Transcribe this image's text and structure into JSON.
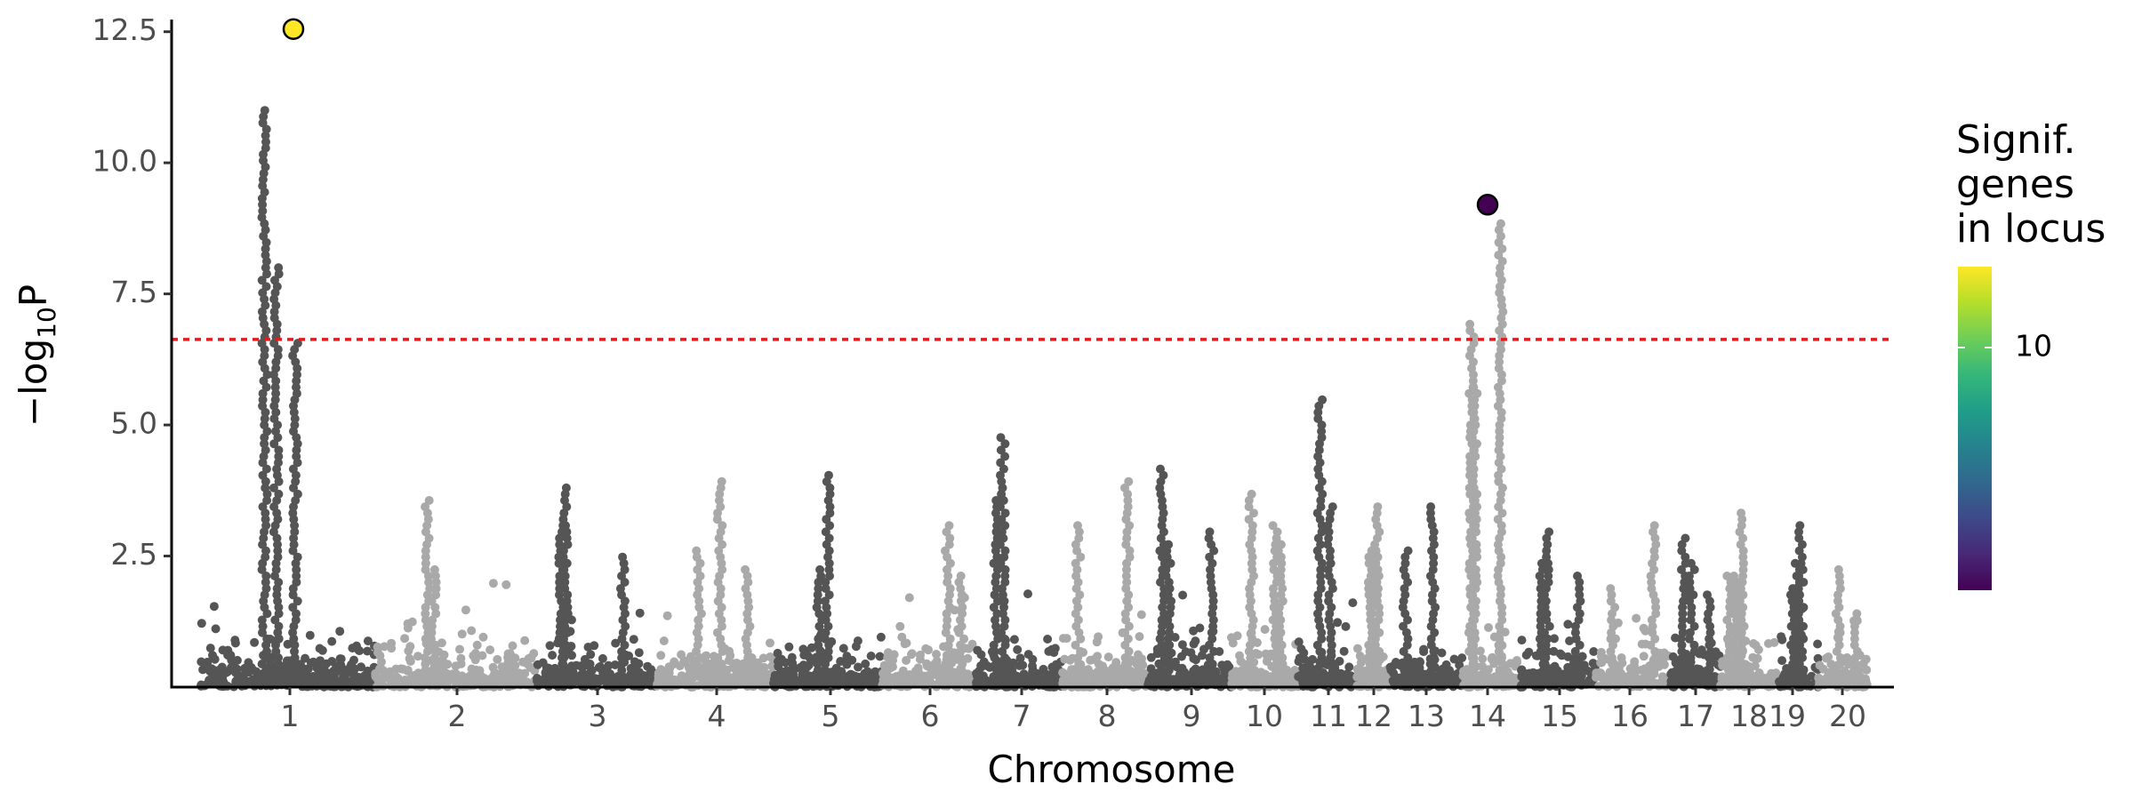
{
  "chart_data": {
    "type": "scatter",
    "subtype": "manhattan",
    "title": "",
    "xlabel": "Chromosome",
    "ylabel_prefix": "−log",
    "ylabel_sub": "10",
    "ylabel_suffix": "P",
    "ylim": [
      0,
      12.8
    ],
    "yticks": [
      2.5,
      5.0,
      7.5,
      10.0,
      12.5
    ],
    "ytick_labels": [
      "2.5",
      "5.0",
      "7.5",
      "10.0",
      "12.5"
    ],
    "significance_threshold": 6.63,
    "threshold_color": "#e41a1c",
    "point_colors": [
      "#555555",
      "#a9a9a9"
    ],
    "chromosomes": [
      {
        "label": "1",
        "sig_peak": 11.1
      },
      {
        "label": "2",
        "sig_peak": 3.6
      },
      {
        "label": "3",
        "sig_peak": 3.9
      },
      {
        "label": "4",
        "sig_peak": 4.0
      },
      {
        "label": "5",
        "sig_peak": 4.1
      },
      {
        "label": "6",
        "sig_peak": 3.1
      },
      {
        "label": "7",
        "sig_peak": 4.8
      },
      {
        "label": "8",
        "sig_peak": 4.0
      },
      {
        "label": "9",
        "sig_peak": 4.2
      },
      {
        "label": "10",
        "sig_peak": 3.8
      },
      {
        "label": "11",
        "sig_peak": 5.5
      },
      {
        "label": "12",
        "sig_peak": 3.5
      },
      {
        "label": "13",
        "sig_peak": 3.5
      },
      {
        "label": "14",
        "sig_peak": 8.9
      },
      {
        "label": "15",
        "sig_peak": 3.0
      },
      {
        "label": "16",
        "sig_peak": 3.2
      },
      {
        "label": "17",
        "sig_peak": 2.9
      },
      {
        "label": "18",
        "sig_peak": 3.4
      },
      {
        "label": "19",
        "sig_peak": 3.1
      },
      {
        "label": "20",
        "sig_peak": 2.3
      }
    ],
    "highlighted_loci": [
      {
        "chromosome": "1",
        "neg_log10_p": 12.55,
        "signif_genes": 13,
        "color": "#fde725"
      },
      {
        "chromosome": "14",
        "neg_log10_p": 9.2,
        "signif_genes": 1,
        "color": "#440154"
      }
    ],
    "legend": {
      "title_lines": [
        "Signif.",
        "genes",
        "in locus"
      ],
      "tick_value": 10,
      "tick_label": "10",
      "range": [
        1,
        13
      ],
      "colors": [
        "#fde725",
        "#b5de2b",
        "#6ece58",
        "#35b779",
        "#1f9e89",
        "#26828e",
        "#31688e",
        "#3e4989",
        "#482878",
        "#440154"
      ],
      "position": "right"
    }
  }
}
